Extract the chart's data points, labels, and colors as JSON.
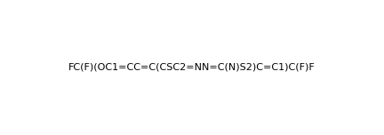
{
  "smiles": "FC(F)(OC1=CC=C(CSC2=NN=C(N)S2)C=C1)C(F)F",
  "title": "",
  "bg_color": "#ffffff",
  "fig_width": 4.32,
  "fig_height": 1.52,
  "dpi": 100
}
